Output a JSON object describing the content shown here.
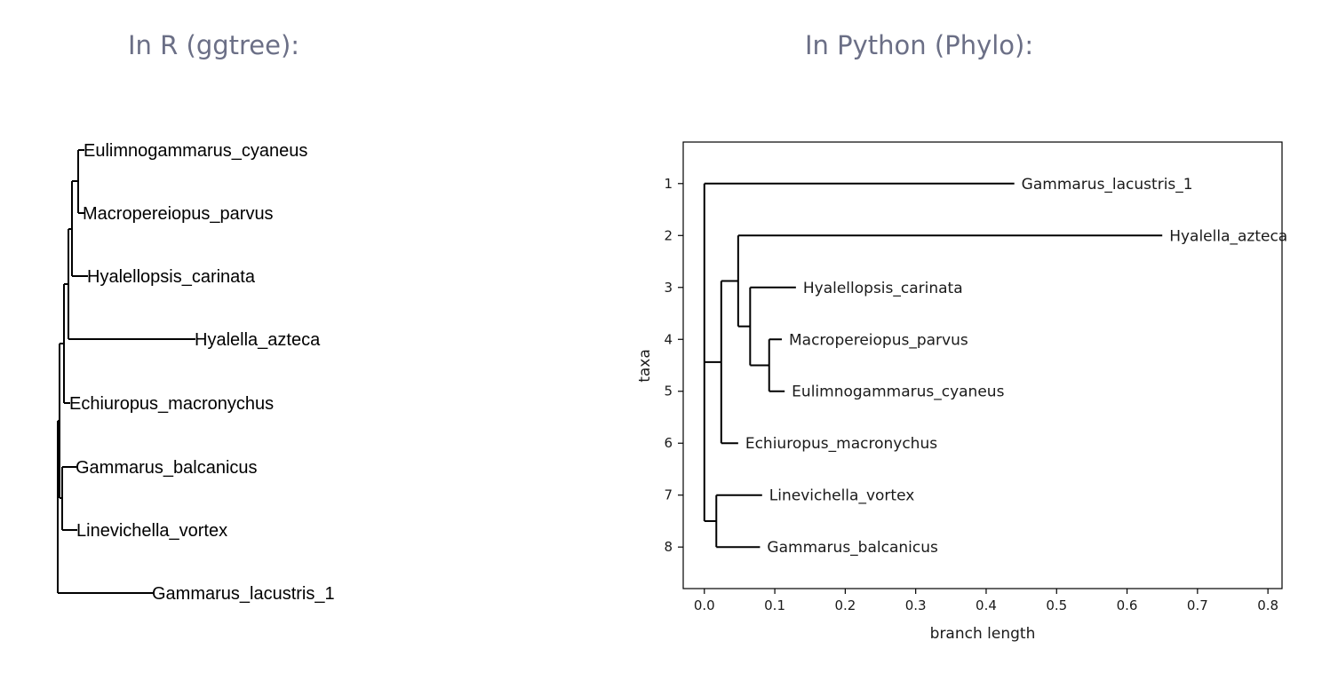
{
  "headings": {
    "left": "In R (ggtree):",
    "right": "In Python (Phylo):"
  },
  "r_tree": {
    "tips": [
      "Eulimnogammarus_cyaneus",
      "Macropereiopus_parvus",
      "Hyalellopsis_carinata",
      "Hyalella_azteca",
      "Echiuropus_macronychus",
      "Gammarus_balcanicus",
      "Linevichella_vortex",
      "Gammarus_lacustris_1"
    ]
  },
  "chart_data": {
    "type": "tree",
    "xlabel": "branch length",
    "ylabel": "taxa",
    "xlim": [
      -0.03,
      0.82
    ],
    "ylim": [
      8.8,
      0.2
    ],
    "xticks": [
      "0.0",
      "0.1",
      "0.2",
      "0.3",
      "0.4",
      "0.5",
      "0.6",
      "0.7",
      "0.8"
    ],
    "yticks": [
      "1",
      "2",
      "3",
      "4",
      "5",
      "6",
      "7",
      "8"
    ],
    "tips": [
      {
        "label": "Gammarus_lacustris_1",
        "y": 1,
        "x": 0.44
      },
      {
        "label": "Hyalella_azteca",
        "y": 2,
        "x": 0.65
      },
      {
        "label": "Hyalellopsis_carinata",
        "y": 3,
        "x": 0.13
      },
      {
        "label": "Macropereiopus_parvus",
        "y": 4,
        "x": 0.11
      },
      {
        "label": "Eulimnogammarus_cyaneus",
        "y": 5,
        "x": 0.114
      },
      {
        "label": "Echiuropus_macronychus",
        "y": 6,
        "x": 0.048
      },
      {
        "label": "Linevichella_vortex",
        "y": 7,
        "x": 0.082
      },
      {
        "label": "Gammarus_balcanicus",
        "y": 8,
        "x": 0.079
      }
    ],
    "nodes": [
      {
        "id": "root",
        "x": 0.0,
        "parent": null
      },
      {
        "id": "A",
        "x": 0.024,
        "parent": "root"
      },
      {
        "id": "B",
        "x": 0.048,
        "parent": "A"
      },
      {
        "id": "C",
        "x": 0.065,
        "parent": "B"
      },
      {
        "id": "D",
        "x": 0.092,
        "parent": "C"
      },
      {
        "id": "E",
        "x": 0.017,
        "parent": "root"
      }
    ],
    "edges": [
      [
        "root",
        "Gammarus_lacustris_1"
      ],
      [
        "root",
        "A"
      ],
      [
        "root",
        "E"
      ],
      [
        "A",
        "B"
      ],
      [
        "A",
        "Echiuropus_macronychus"
      ],
      [
        "B",
        "Hyalella_azteca"
      ],
      [
        "B",
        "C"
      ],
      [
        "C",
        "Hyalellopsis_carinata"
      ],
      [
        "C",
        "D"
      ],
      [
        "D",
        "Macropereiopus_parvus"
      ],
      [
        "D",
        "Eulimnogammarus_cyaneus"
      ],
      [
        "E",
        "Linevichella_vortex"
      ],
      [
        "E",
        "Gammarus_balcanicus"
      ]
    ]
  }
}
